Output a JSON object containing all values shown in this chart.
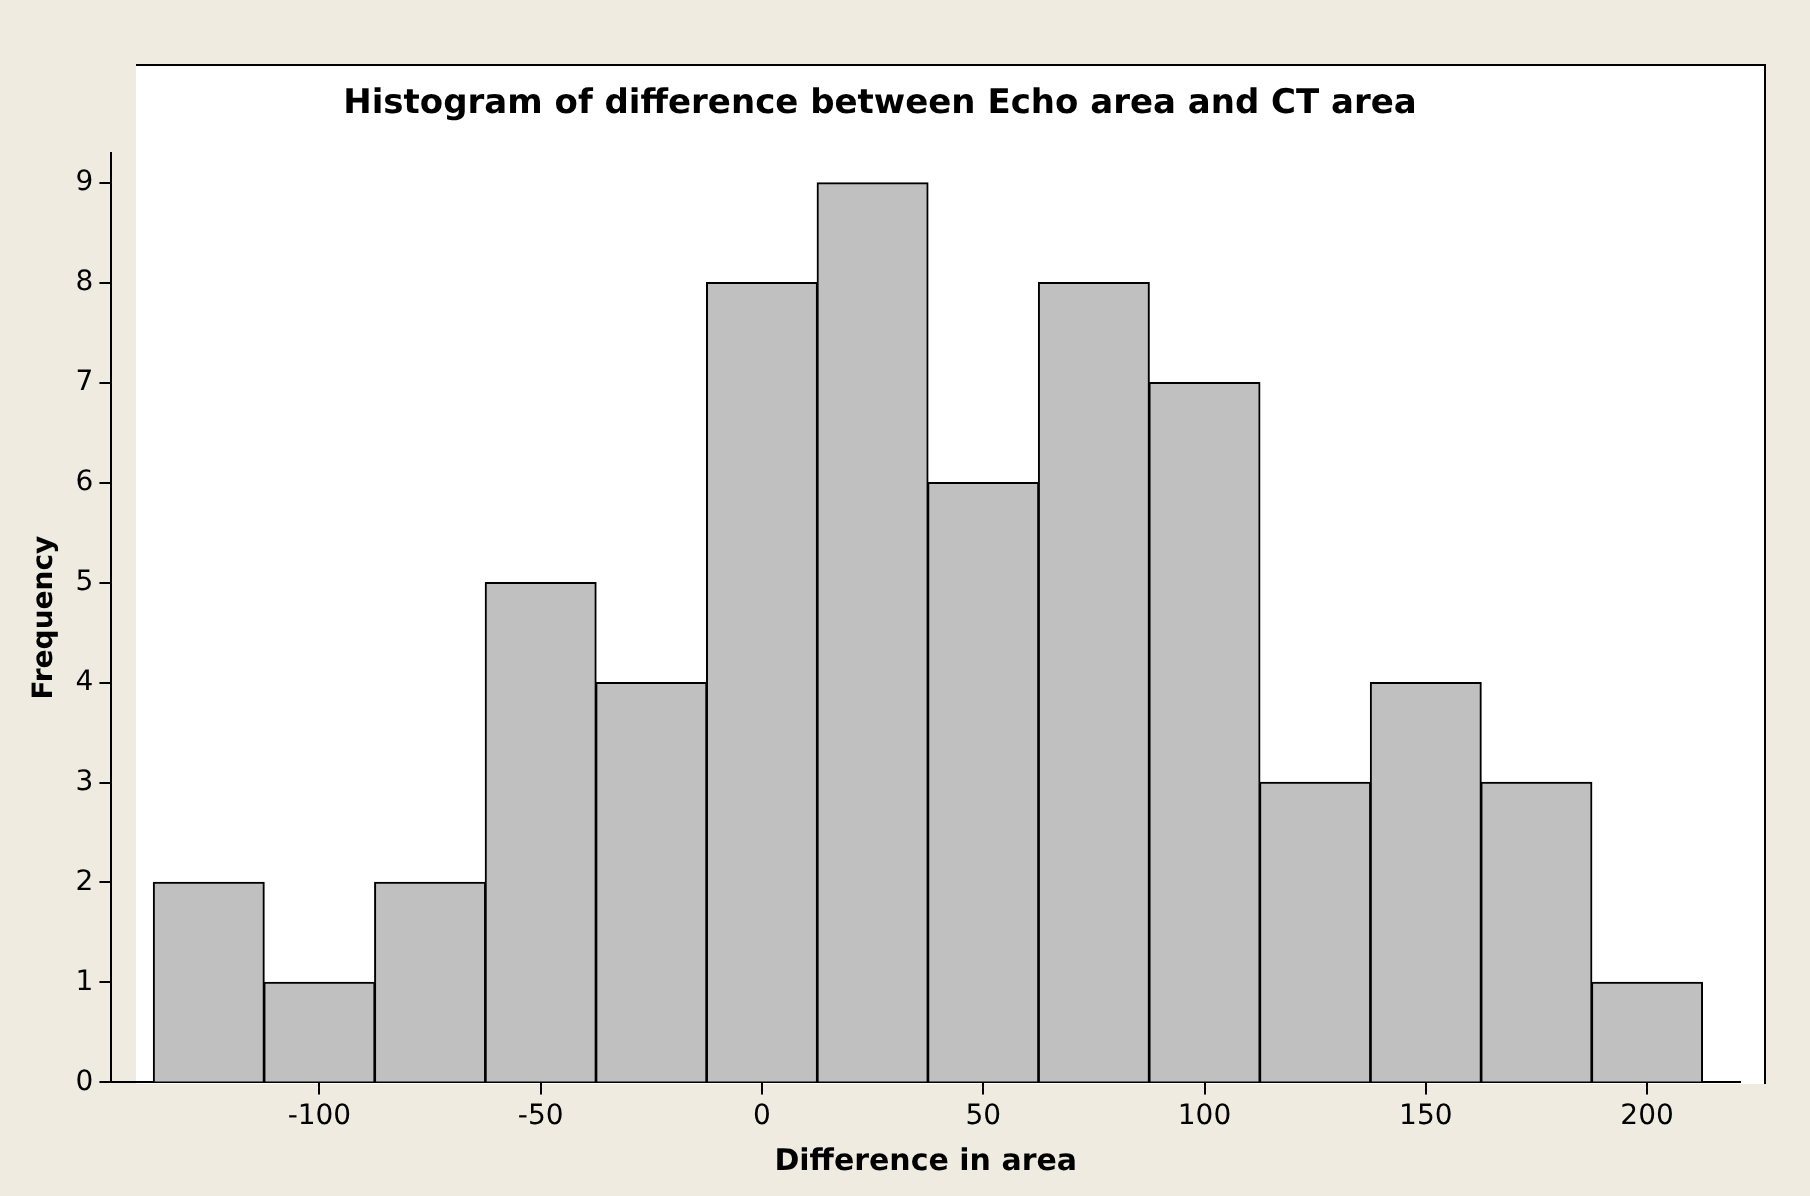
{
  "chart_data": {
    "type": "histogram",
    "title": "Histogram of difference between Echo area and CT area",
    "xlabel": "Difference in area",
    "ylabel": "Frequency",
    "bins": [
      -137.5,
      -112.5,
      -87.5,
      -62.5,
      -37.5,
      -12.5,
      12.5,
      37.5,
      62.5,
      87.5,
      112.5,
      137.5,
      162.5,
      187.5,
      212.5
    ],
    "values": [
      2,
      1,
      2,
      5,
      4,
      8,
      9,
      6,
      8,
      7,
      3,
      4,
      3,
      1
    ],
    "color": "#c0c0c0",
    "xlim": [
      -147,
      221
    ],
    "xticks": [
      -100,
      -50,
      0,
      50,
      100,
      150,
      200
    ],
    "ylim": [
      0,
      9.3
    ],
    "yticks": [
      0,
      1,
      2,
      3,
      4,
      5,
      6,
      7,
      8,
      9
    ],
    "grid": false,
    "legend": false
  }
}
